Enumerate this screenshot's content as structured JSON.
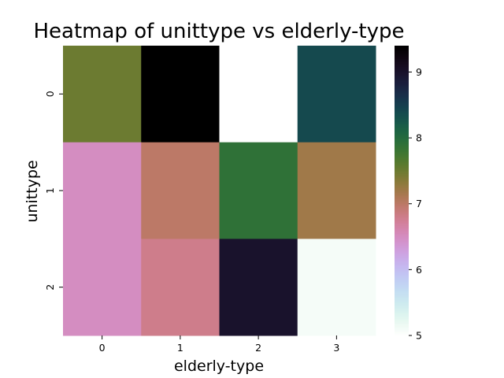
{
  "chart_data": {
    "type": "heatmap",
    "title": "Heatmap of unittype vs elderly-type",
    "xlabel": "elderly-type",
    "ylabel": "unittype",
    "x_categories": [
      "0",
      "1",
      "2",
      "3"
    ],
    "y_categories": [
      "0",
      "1",
      "2"
    ],
    "values": [
      [
        7.5,
        9.4,
        5.0,
        8.4
      ],
      [
        6.5,
        7.0,
        7.9,
        7.2
      ],
      [
        6.5,
        6.8,
        9.0,
        5.1
      ]
    ],
    "colorbar": {
      "min": 5.0,
      "max": 9.4,
      "ticks": [
        5,
        6,
        7,
        8,
        9
      ],
      "colormap": "cubehelix_r"
    }
  }
}
